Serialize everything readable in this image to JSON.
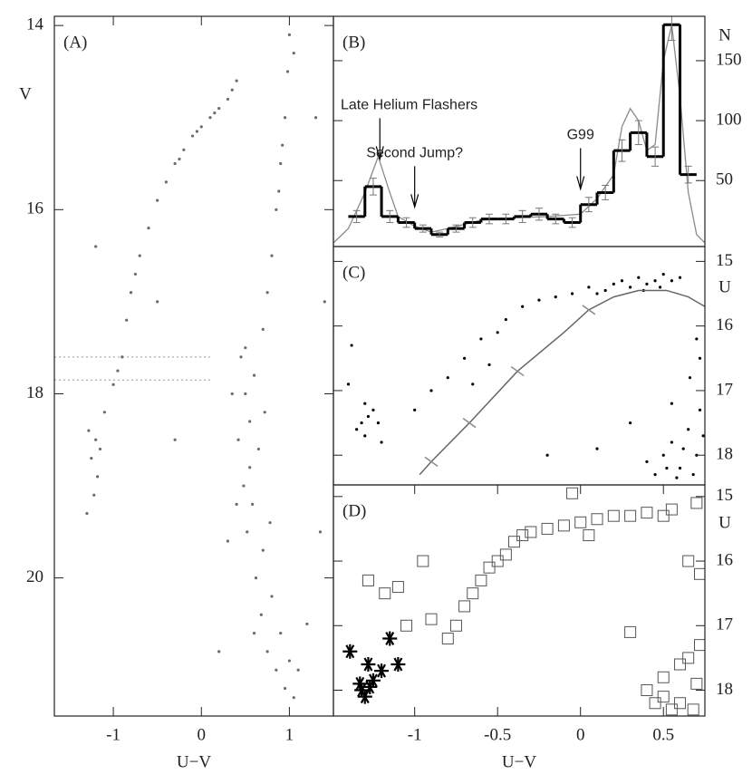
{
  "chart_data": [
    {
      "type": "scatter",
      "label": "(A)",
      "xlabel": "U−V",
      "ylabel": "V",
      "xlim": [
        -1.67,
        1.5
      ],
      "ylim": [
        21.5,
        13.9
      ],
      "xticks": [
        -1,
        0,
        1
      ],
      "yticks": [
        14,
        16,
        18,
        20
      ],
      "color": "#6b6b6b",
      "hlines": [
        17.6,
        17.85
      ],
      "hline_xlim": [
        -1.67,
        0.1
      ],
      "x": [
        -0.9,
        -0.85,
        -0.8,
        -0.75,
        -0.7,
        -0.6,
        -0.5,
        -0.4,
        -0.3,
        -0.2,
        -0.1,
        0,
        0.1,
        0.2,
        0.3,
        0.35,
        0.4,
        -0.05,
        0.15,
        -0.25,
        -1.2,
        -1.25,
        -1.18,
        -1.22,
        -1.28,
        -1.15,
        -1.3,
        -1.1,
        -1.0,
        -0.95,
        1.0,
        0.98,
        0.95,
        0.9,
        0.85,
        0.8,
        0.75,
        0.7,
        1.05,
        0.92,
        0.88,
        0.45,
        0.5,
        0.42,
        0.55,
        0.6,
        0.48,
        0.52,
        0.58,
        0.62,
        0.68,
        0.75,
        0.85,
        0.95,
        1.05,
        0.9,
        0.7,
        0.65,
        0.8,
        1.0,
        0.55,
        0.5,
        0.72,
        0.4,
        0.6,
        1.1,
        0.78,
        0.35,
        0.3,
        1.2,
        0.2,
        -0.5,
        -0.3,
        1.3,
        1.4,
        -1.2,
        1.35
      ],
      "y": [
        17.6,
        17.2,
        16.9,
        16.7,
        16.5,
        16.2,
        15.9,
        15.7,
        15.5,
        15.35,
        15.2,
        15.1,
        15.0,
        14.9,
        14.8,
        14.7,
        14.6,
        15.15,
        14.95,
        15.45,
        18.5,
        18.7,
        18.9,
        19.1,
        18.4,
        18.6,
        19.3,
        18.2,
        17.9,
        17.75,
        14.1,
        14.5,
        15.0,
        15.5,
        16.0,
        16.5,
        16.9,
        17.3,
        14.3,
        15.3,
        15.8,
        17.6,
        18.0,
        18.5,
        18.3,
        17.8,
        19.0,
        19.5,
        19.2,
        20.0,
        20.4,
        20.8,
        21.0,
        21.2,
        21.3,
        20.6,
        19.7,
        18.6,
        20.2,
        20.9,
        18.8,
        17.5,
        18.2,
        19.2,
        20.6,
        21.0,
        19.4,
        18.0,
        19.6,
        20.5,
        20.8,
        17.0,
        18.5,
        15.0,
        17.0,
        16.4,
        19.5
      ]
    },
    {
      "type": "histogram",
      "label": "(B)",
      "ylabel": "N",
      "xlim": [
        -1.49,
        0.75
      ],
      "ylim": [
        -5,
        187
      ],
      "yticks": [
        50,
        100,
        150
      ],
      "color": "#000",
      "bins": [
        -1.4,
        -1.3,
        -1.2,
        -1.1,
        -1.0,
        -0.9,
        -0.8,
        -0.7,
        -0.6,
        -0.5,
        -0.4,
        -0.3,
        -0.2,
        -0.1,
        0,
        0.1,
        0.2,
        0.3,
        0.4,
        0.5,
        0.6,
        0.7
      ],
      "counts": [
        20,
        45,
        20,
        15,
        10,
        5,
        10,
        15,
        18,
        18,
        20,
        22,
        18,
        15,
        30,
        40,
        75,
        90,
        70,
        180,
        55
      ],
      "errors": [
        5,
        7,
        5,
        4,
        3,
        2,
        3,
        4,
        4,
        4,
        5,
        5,
        4,
        4,
        6,
        6,
        9,
        10,
        8,
        13,
        7
      ],
      "fit": {
        "color": "#8a8a8a",
        "x": [
          -1.49,
          -1.4,
          -1.3,
          -1.22,
          -1.15,
          -1.1,
          -1.0,
          -0.9,
          -0.8,
          -0.6,
          -0.4,
          -0.2,
          0,
          0.1,
          0.2,
          0.25,
          0.3,
          0.35,
          0.4,
          0.45,
          0.5,
          0.55,
          0.6,
          0.65,
          0.7,
          0.75
        ],
        "y": [
          -2,
          10,
          40,
          70,
          40,
          20,
          12,
          7,
          10,
          17,
          19,
          20,
          22,
          35,
          55,
          95,
          110,
          100,
          75,
          80,
          150,
          180,
          120,
          40,
          5,
          -2
        ]
      },
      "annotations": [
        {
          "text": "Late Helium Flashers",
          "x": -1.21,
          "y": 68
        },
        {
          "text": "Second Jump?",
          "x": -1.0,
          "y": 28
        },
        {
          "text": "G99",
          "x": 0.0,
          "y": 43
        }
      ]
    },
    {
      "type": "scatter",
      "label": "(C)",
      "ylabel": "U",
      "xlim": [
        -1.49,
        0.75
      ],
      "ylim": [
        18.46,
        14.77
      ],
      "yticks": [
        15,
        16,
        17,
        18
      ],
      "color": "#000",
      "x": [
        0.2,
        0.25,
        0.3,
        0.35,
        0.4,
        0.45,
        0.5,
        0.55,
        0.6,
        0.15,
        0.1,
        0.05,
        -0.05,
        -0.15,
        -0.25,
        -0.35,
        0.48,
        0.38,
        -0.6,
        -0.7,
        -0.8,
        -0.65,
        -0.5,
        -0.45,
        -0.9,
        -1.0,
        -0.55,
        -1.3,
        -1.28,
        -1.32,
        -1.25,
        -1.35,
        -1.22,
        -1.3,
        -1.4,
        -1.2,
        -1.38,
        0.5,
        0.55,
        0.6,
        0.65,
        0.7,
        0.72,
        0.45,
        0.58,
        0.68,
        0.62,
        0.52,
        0.74,
        0.4,
        0.66,
        0.7,
        0.55,
        0.3,
        0.1,
        -0.2,
        0.72
      ],
      "y": [
        15.35,
        15.3,
        15.4,
        15.25,
        15.35,
        15.3,
        15.2,
        15.3,
        15.25,
        15.45,
        15.5,
        15.4,
        15.5,
        15.55,
        15.6,
        15.7,
        15.4,
        15.45,
        16.2,
        16.5,
        16.8,
        16.9,
        16.1,
        15.9,
        17.0,
        17.3,
        16.6,
        17.2,
        17.4,
        17.5,
        17.3,
        17.6,
        17.5,
        17.7,
        16.9,
        17.8,
        16.3,
        18.0,
        17.8,
        18.2,
        17.6,
        18.0,
        17.3,
        18.3,
        18.35,
        18.3,
        17.9,
        18.2,
        17.7,
        18.1,
        16.8,
        16.2,
        17.2,
        17.5,
        17.9,
        18.0,
        16.5
      ],
      "line": {
        "color": "#666",
        "x": [
          -0.97,
          -0.9,
          -0.67,
          -0.38,
          -0.1,
          0.05,
          0.2,
          0.35,
          0.52,
          0.65,
          0.75
        ],
        "y": [
          18.3,
          18.1,
          17.5,
          16.7,
          16.1,
          15.75,
          15.55,
          15.45,
          15.45,
          15.55,
          15.7
        ]
      },
      "line_ticks": {
        "x": [
          -0.9,
          -0.67,
          -0.38,
          0.05
        ],
        "y": [
          18.1,
          17.5,
          16.7,
          15.75
        ]
      }
    },
    {
      "type": "scatter",
      "label": "(D)",
      "xlabel": "U−V",
      "ylabel": "U",
      "xlim": [
        -1.49,
        0.75
      ],
      "ylim": [
        18.4,
        14.82
      ],
      "xticks": [
        -1,
        -0.5,
        0,
        0.5
      ],
      "yticks": [
        15,
        16,
        17,
        18
      ],
      "series": [
        {
          "marker": "square",
          "color": "#555",
          "x": [
            -0.75,
            -0.7,
            -0.65,
            -0.6,
            -0.55,
            -0.5,
            -0.45,
            -0.4,
            -0.35,
            -0.3,
            -0.2,
            -0.1,
            0,
            0.1,
            0.2,
            0.3,
            0.4,
            0.5,
            0.55,
            -0.8,
            -0.9,
            -1.05,
            -1.1,
            -1.18,
            -1.28,
            -0.95,
            -0.05,
            0.05,
            0.7,
            0.72,
            0.65,
            0.4,
            0.5,
            0.6,
            0.65,
            0.7,
            0.55,
            0.45,
            0.72,
            0.3,
            0.68,
            0.6,
            0.5
          ],
          "y": [
            17.0,
            16.7,
            16.5,
            16.3,
            16.1,
            16.0,
            15.9,
            15.7,
            15.6,
            15.55,
            15.5,
            15.45,
            15.4,
            15.35,
            15.3,
            15.3,
            15.25,
            15.3,
            15.2,
            17.2,
            16.9,
            17.0,
            16.4,
            16.5,
            16.3,
            16.0,
            14.95,
            15.6,
            15.1,
            16.2,
            16.0,
            18.0,
            17.8,
            18.2,
            17.5,
            17.9,
            18.3,
            18.2,
            17.3,
            17.1,
            18.3,
            17.6,
            18.1
          ]
        },
        {
          "marker": "asterisk",
          "color": "#000",
          "x": [
            -1.39,
            -1.33,
            -1.3,
            -1.28,
            -1.25,
            -1.2,
            -1.15,
            -1.1,
            -1.27,
            -1.32
          ],
          "y": [
            17.4,
            17.9,
            18.1,
            17.6,
            17.85,
            17.7,
            17.2,
            17.6,
            17.95,
            18.0
          ]
        }
      ]
    }
  ]
}
